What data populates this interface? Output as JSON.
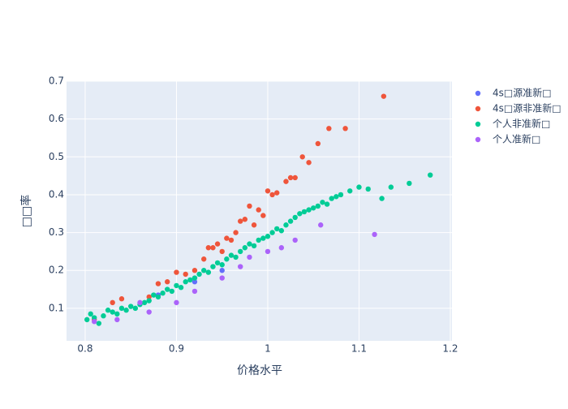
{
  "chart_data": {
    "type": "scatter",
    "x_label": "价格水平",
    "y_label": "□□率",
    "xlim": [
      0.7796,
      1.2018
    ],
    "ylim": [
      0.014,
      0.7
    ],
    "xticks": [
      0.8,
      0.9,
      1,
      1.1,
      1.2
    ],
    "yticks": [
      0.1,
      0.2,
      0.3,
      0.4,
      0.5,
      0.6,
      0.7
    ],
    "grid": true,
    "legend": "right",
    "series": [
      {
        "name": "4s□源准新□",
        "color": "#636efa",
        "x": [
          0.88,
          0.92,
          0.95
        ],
        "values": [
          0.135,
          0.17,
          0.2
        ]
      },
      {
        "name": "4s□源非准新□",
        "color": "#EF553B",
        "x": [
          0.81,
          0.83,
          0.84,
          0.87,
          0.88,
          0.89,
          0.9,
          0.91,
          0.92,
          0.93,
          0.935,
          0.94,
          0.945,
          0.95,
          0.955,
          0.96,
          0.965,
          0.97,
          0.975,
          0.98,
          0.985,
          0.99,
          0.995,
          1.0,
          1.005,
          1.01,
          1.02,
          1.025,
          1.03,
          1.038,
          1.045,
          1.055,
          1.067,
          1.085,
          1.127
        ],
        "values": [
          0.07,
          0.115,
          0.125,
          0.13,
          0.165,
          0.17,
          0.195,
          0.19,
          0.2,
          0.23,
          0.26,
          0.26,
          0.27,
          0.25,
          0.285,
          0.28,
          0.3,
          0.33,
          0.335,
          0.37,
          0.32,
          0.36,
          0.345,
          0.41,
          0.4,
          0.405,
          0.435,
          0.445,
          0.445,
          0.5,
          0.485,
          0.535,
          0.575,
          0.575,
          0.66
        ]
      },
      {
        "name": "个人非准新□",
        "color": "#00cc96",
        "x": [
          0.802,
          0.806,
          0.81,
          0.815,
          0.82,
          0.825,
          0.83,
          0.835,
          0.84,
          0.845,
          0.85,
          0.855,
          0.86,
          0.865,
          0.87,
          0.875,
          0.88,
          0.885,
          0.89,
          0.895,
          0.9,
          0.905,
          0.91,
          0.915,
          0.92,
          0.925,
          0.93,
          0.935,
          0.94,
          0.945,
          0.95,
          0.955,
          0.96,
          0.965,
          0.97,
          0.975,
          0.98,
          0.985,
          0.99,
          0.995,
          1.0,
          1.005,
          1.01,
          1.015,
          1.02,
          1.025,
          1.03,
          1.035,
          1.04,
          1.045,
          1.05,
          1.055,
          1.06,
          1.065,
          1.07,
          1.075,
          1.08,
          1.09,
          1.1,
          1.11,
          1.125,
          1.135,
          1.155,
          1.178
        ],
        "values": [
          0.07,
          0.085,
          0.075,
          0.06,
          0.08,
          0.095,
          0.09,
          0.085,
          0.1,
          0.095,
          0.105,
          0.1,
          0.11,
          0.115,
          0.12,
          0.135,
          0.13,
          0.14,
          0.15,
          0.145,
          0.16,
          0.155,
          0.17,
          0.175,
          0.18,
          0.19,
          0.2,
          0.195,
          0.21,
          0.22,
          0.215,
          0.23,
          0.24,
          0.235,
          0.25,
          0.26,
          0.27,
          0.265,
          0.28,
          0.285,
          0.29,
          0.3,
          0.31,
          0.305,
          0.32,
          0.33,
          0.34,
          0.35,
          0.355,
          0.36,
          0.365,
          0.37,
          0.38,
          0.375,
          0.39,
          0.395,
          0.4,
          0.41,
          0.42,
          0.415,
          0.39,
          0.42,
          0.43,
          0.452
        ]
      },
      {
        "name": "个人准新□",
        "color": "#ab63fa",
        "x": [
          0.81,
          0.835,
          0.86,
          0.87,
          0.9,
          0.92,
          0.95,
          0.97,
          0.98,
          1.0,
          1.015,
          1.03,
          1.058,
          1.117
        ],
        "values": [
          0.065,
          0.07,
          0.115,
          0.09,
          0.115,
          0.145,
          0.18,
          0.21,
          0.235,
          0.25,
          0.26,
          0.28,
          0.32,
          0.295
        ]
      }
    ]
  }
}
